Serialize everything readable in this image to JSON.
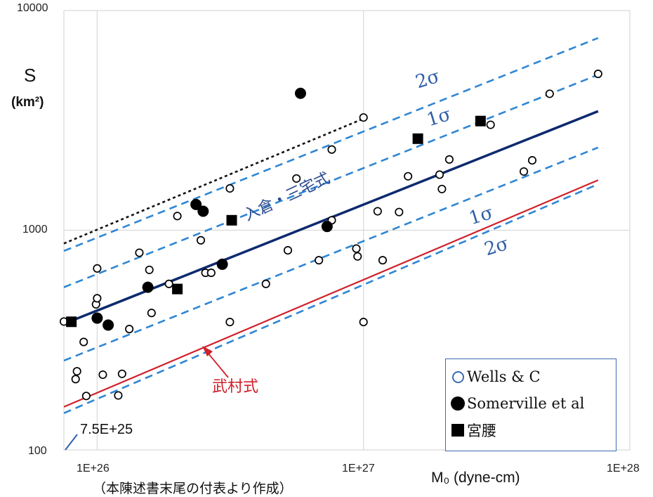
{
  "axes": {
    "y_label": "S",
    "y_unit": "(km²)",
    "x_label": "M₀ (dyne-cm)",
    "y_ticks": [
      "10000",
      "1000",
      "100"
    ],
    "x_ticks": [
      "1E+26",
      "1E+27",
      "1E+28"
    ]
  },
  "annotations": {
    "plus2sigma": "2σ",
    "plus1sigma": "1σ",
    "minus1sigma": "1σ",
    "minus2sigma": "2σ",
    "irikura": "入倉・三宅式",
    "takemura": "武村式",
    "lower_bound": "7.5E+25",
    "caption": "（本陳述書末尾の付表より作成）"
  },
  "legend": {
    "wells": "Wells & C",
    "somerville": "Somerville et al",
    "miyakoshi": "宮腰"
  },
  "colors": {
    "irikura_line": "#0d2a6e",
    "sigma_lines": "#2f86d4",
    "takemura_line": "#d0202a",
    "extension_line": "#111111",
    "grid": "#d9d9d9"
  },
  "chart_data": {
    "type": "scatter",
    "x_scale": "log",
    "y_scale": "log",
    "xlim": [
      7.5e+25,
      1e+28
    ],
    "ylim": [
      100,
      10000
    ],
    "grid": true,
    "legend_position": "bottom-right",
    "lines": [
      {
        "name": "入倉・三宅式",
        "style": "solid",
        "x": [
          7.5e+25,
          7.6e+27
        ],
        "y": [
          375,
          3480
        ]
      },
      {
        "name": "+1σ",
        "style": "dashed",
        "x": [
          7.5e+25,
          7.6e+27
        ],
        "y": [
          550,
          5100
        ]
      },
      {
        "name": "+2σ",
        "style": "dashed",
        "x": [
          7.5e+25,
          7.6e+27
        ],
        "y": [
          805,
          7500
        ]
      },
      {
        "name": "-1σ",
        "style": "dashed",
        "x": [
          7.5e+25,
          7.6e+27
        ],
        "y": [
          255,
          2380
        ]
      },
      {
        "name": "-2σ",
        "style": "dashed",
        "x": [
          7.5e+25,
          7.6e+27
        ],
        "y": [
          147,
          1620
        ]
      },
      {
        "name": "武村式",
        "style": "solid",
        "x": [
          7.5e+25,
          7.6e+27
        ],
        "y": [
          157,
          1690
        ]
      },
      {
        "name": "",
        "style": "dotted",
        "x": [
          7.5e+25,
          1e+27
        ],
        "y": [
          870,
          3220
        ]
      }
    ],
    "series": [
      {
        "name": "Wells & C",
        "marker": "open-circle",
        "points": [
          [
            7.5e+25,
            384
          ],
          [
            8.3e+25,
            210
          ],
          [
            8.4e+25,
            228
          ],
          [
            8.9e+25,
            310
          ],
          [
            9.1e+25,
            176
          ],
          [
            9.9e+25,
            460
          ],
          [
            1e+26,
            670
          ],
          [
            1e+26,
            490
          ],
          [
            1.05e+26,
            220
          ],
          [
            1.2e+26,
            177
          ],
          [
            1.24e+26,
            222
          ],
          [
            1.32e+26,
            355
          ],
          [
            1.44e+26,
            790
          ],
          [
            1.57e+26,
            660
          ],
          [
            1.6e+26,
            420
          ],
          [
            1.86e+26,
            570
          ],
          [
            2e+26,
            1160
          ],
          [
            2.45e+26,
            900
          ],
          [
            2.55e+26,
            640
          ],
          [
            2.68e+26,
            640
          ],
          [
            3.15e+26,
            1550
          ],
          [
            3.15e+26,
            382
          ],
          [
            4.3e+26,
            570
          ],
          [
            5.2e+26,
            810
          ],
          [
            5.6e+26,
            1720
          ],
          [
            6.8e+26,
            730
          ],
          [
            7.6e+26,
            2330
          ],
          [
            7.6e+26,
            1110
          ],
          [
            9.4e+26,
            825
          ],
          [
            9.5e+26,
            760
          ],
          [
            1e+27,
            3260
          ],
          [
            1e+27,
            382
          ],
          [
            1.13e+27,
            1220
          ],
          [
            1.18e+27,
            730
          ],
          [
            1.36e+27,
            1210
          ],
          [
            1.47e+27,
            1760
          ],
          [
            1.93e+27,
            1790
          ],
          [
            1.97e+27,
            1540
          ],
          [
            2.1e+27,
            2100
          ],
          [
            3e+27,
            3020
          ],
          [
            4e+27,
            1850
          ],
          [
            4.3e+27,
            2080
          ],
          [
            5e+27,
            4180
          ],
          [
            7.6e+27,
            5150
          ]
        ]
      },
      {
        "name": "Somerville et al",
        "marker": "filled-circle",
        "points": [
          [
            1e+26,
            398
          ],
          [
            1.1e+26,
            370
          ],
          [
            1.55e+26,
            550
          ],
          [
            2.35e+26,
            1310
          ],
          [
            2.5e+26,
            1220
          ],
          [
            2.95e+26,
            700
          ],
          [
            5.8e+26,
            4200
          ],
          [
            7.3e+26,
            1040
          ]
        ]
      },
      {
        "name": "宮腰",
        "marker": "square",
        "points": [
          [
            8e+25,
            383
          ],
          [
            2e+26,
            540
          ],
          [
            3.2e+26,
            1110
          ],
          [
            1.6e+27,
            2610
          ],
          [
            2.75e+27,
            3140
          ]
        ]
      }
    ]
  }
}
